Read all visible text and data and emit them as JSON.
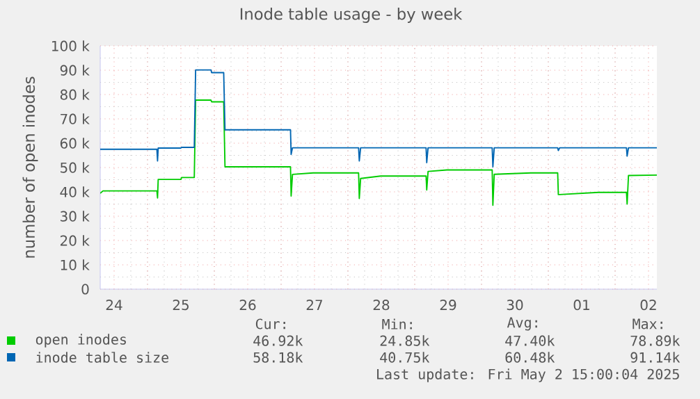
{
  "chart_data": {
    "type": "line",
    "title": "Inode table usage - by week",
    "ylabel": "number of open inodes",
    "x": [
      "2025-04-24T07:00",
      "2025-04-24T08:00",
      "2025-04-25T03:22",
      "2025-04-25T03:36",
      "2025-04-25T03:50",
      "2025-04-25T12:00",
      "2025-04-25T12:14",
      "2025-04-25T16:48",
      "2025-04-25T17:17",
      "2025-04-25T22:48",
      "2025-04-25T23:02",
      "2025-04-26T03:22",
      "2025-04-26T03:50",
      "2025-04-27T03:22",
      "2025-04-27T03:36",
      "2025-04-27T04:05",
      "2025-04-27T11:31",
      "2025-04-28T03:50",
      "2025-04-28T04:05",
      "2025-04-28T04:34",
      "2025-04-28T11:46",
      "2025-04-29T04:05",
      "2025-04-29T04:19",
      "2025-04-29T04:48",
      "2025-04-29T11:31",
      "2025-04-30T03:50",
      "2025-04-30T04:05",
      "2025-04-30T04:34",
      "2025-04-30T17:46",
      "2025-05-01T03:22",
      "2025-05-01T03:36",
      "2025-05-01T04:05",
      "2025-05-01T18:00",
      "2025-05-02T04:05",
      "2025-05-02T04:19",
      "2025-05-02T04:48",
      "2025-05-02T15:00"
    ],
    "series": [
      {
        "name": "open inodes",
        "color": "#00cc00",
        "values": [
          39.4,
          40.4,
          40.4,
          37.5,
          45.1,
          45.1,
          45.9,
          45.9,
          77.7,
          77.7,
          77.0,
          77.0,
          50.3,
          50.3,
          38.3,
          47.2,
          47.8,
          47.8,
          37.3,
          45.5,
          46.5,
          46.5,
          40.8,
          48.4,
          49.0,
          49.0,
          34.5,
          47.2,
          47.8,
          47.8,
          38.9,
          38.9,
          39.8,
          39.8,
          35.0,
          46.7,
          46.9
        ]
      },
      {
        "name": "inode table size",
        "color": "#0066b3",
        "values": [
          57.5,
          57.5,
          57.5,
          52.7,
          58.0,
          58.0,
          58.3,
          58.3,
          90.1,
          90.1,
          89.0,
          89.0,
          65.5,
          65.5,
          55.4,
          58.1,
          58.1,
          58.1,
          52.7,
          58.1,
          58.1,
          58.1,
          52.0,
          58.1,
          58.1,
          58.1,
          50.3,
          58.1,
          58.1,
          58.1,
          57.0,
          58.1,
          58.1,
          58.1,
          54.7,
          58.1,
          58.1
        ]
      }
    ],
    "xlim": [
      "2025-04-24T07:00",
      "2025-05-02T15:00"
    ],
    "xticks": [
      {
        "value": "2025-04-24T12:00",
        "label": "24"
      },
      {
        "value": "2025-04-25",
        "label": null
      },
      {
        "value": "2025-04-25T12:00",
        "label": "25"
      },
      {
        "value": "2025-04-26",
        "label": null
      },
      {
        "value": "2025-04-26T12:00",
        "label": "26"
      },
      {
        "value": "2025-04-27",
        "label": null
      },
      {
        "value": "2025-04-27T12:00",
        "label": "27"
      },
      {
        "value": "2025-04-28",
        "label": null
      },
      {
        "value": "2025-04-28T12:00",
        "label": "28"
      },
      {
        "value": "2025-04-29",
        "label": null
      },
      {
        "value": "2025-04-29T12:00",
        "label": "29"
      },
      {
        "value": "2025-04-30",
        "label": null
      },
      {
        "value": "2025-04-30T12:00",
        "label": "30"
      },
      {
        "value": "2025-05-01",
        "label": null
      },
      {
        "value": "2025-05-01T12:00",
        "label": "01"
      },
      {
        "value": "2025-05-02",
        "label": null
      },
      {
        "value": "2025-05-02T12:00",
        "label": "02"
      }
    ],
    "ylim": [
      0,
      100
    ],
    "yticks": [
      0,
      {
        "value": 10,
        "label": "10 k"
      },
      {
        "value": 20,
        "label": "20 k"
      },
      {
        "value": 30,
        "label": "30 k"
      },
      {
        "value": 40,
        "label": "40 k"
      },
      {
        "value": 50,
        "label": "50 k"
      },
      {
        "value": 60,
        "label": "60 k"
      },
      {
        "value": 70,
        "label": "70 k"
      },
      {
        "value": 80,
        "label": "80 k"
      },
      {
        "value": 90,
        "label": "90 k"
      },
      {
        "value": 100,
        "label": "100 k"
      }
    ],
    "grid": true,
    "legend": "bottom",
    "annotations": [
      "Cur:",
      "Min:",
      "Avg:",
      "Max:",
      "46.92k",
      "24.85k",
      "47.40k",
      "78.89k",
      "58.18k",
      "40.75k",
      "60.48k",
      "91.14k",
      "Last update: Fri May  2 15:00:04 2025"
    ]
  }
}
